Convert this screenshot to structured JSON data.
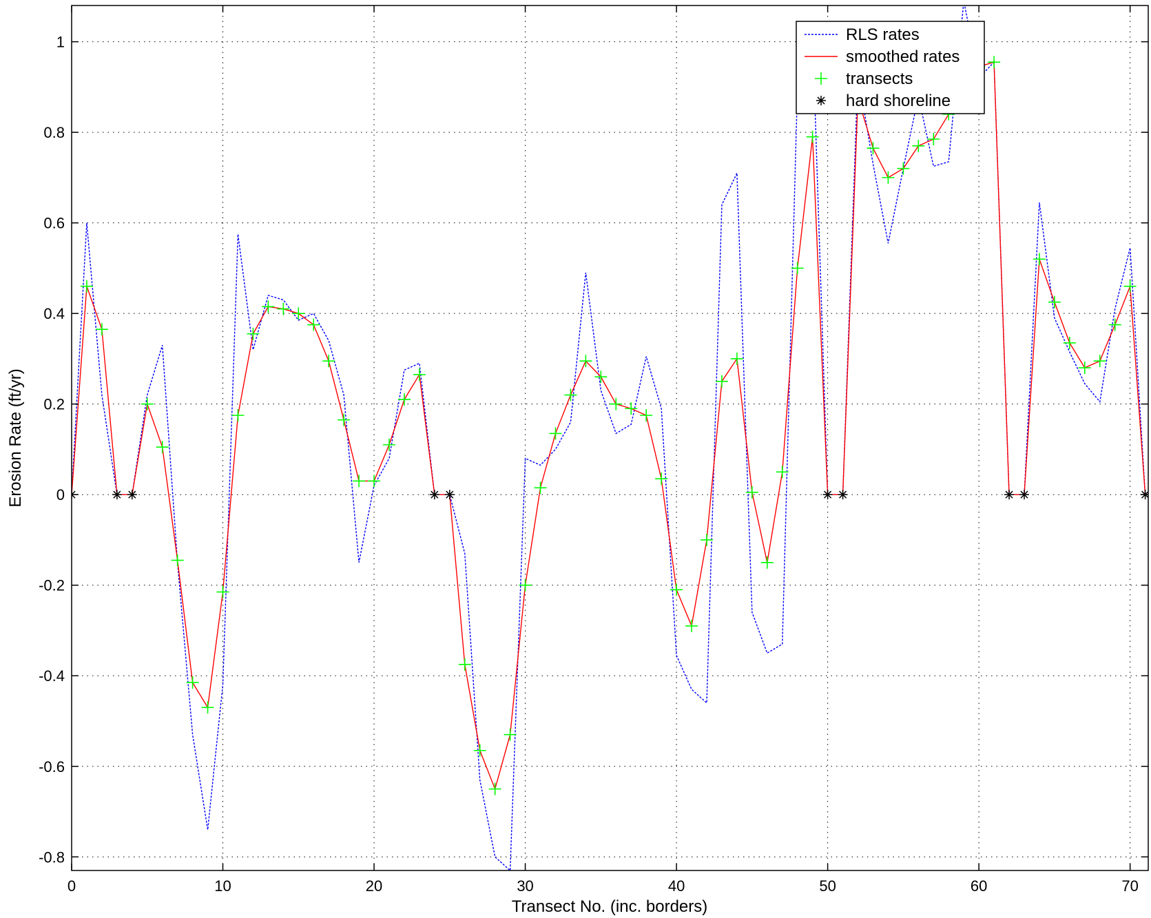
{
  "chart_data": {
    "type": "line",
    "xlabel": "Transect No. (inc. borders)",
    "ylabel": "Erosion Rate (ft/yr)",
    "xlim": [
      0,
      71.2
    ],
    "ylim": [
      -0.83,
      1.08
    ],
    "x_ticks": [
      0,
      10,
      20,
      30,
      40,
      50,
      60,
      70
    ],
    "y_ticks": [
      -0.8,
      -0.6,
      -0.4,
      -0.2,
      0,
      0.2,
      0.4,
      0.6,
      0.8,
      1
    ],
    "x_tick_labels": [
      "0",
      "10",
      "20",
      "30",
      "40",
      "50",
      "60",
      "70"
    ],
    "y_tick_labels": [
      "-0.8",
      "-0.6",
      "-0.4",
      "-0.2",
      "0",
      "0.2",
      "0.4",
      "0.6",
      "0.8",
      "1"
    ],
    "grid": true,
    "legend_position": "top-right",
    "colors": {
      "rls": "#0000ff",
      "smoothed": "#ff0000",
      "transects": "#00ff00",
      "hard": "#000000"
    },
    "series": [
      {
        "name": "RLS rates",
        "style": "dotted",
        "x": [
          0,
          1,
          2,
          3,
          4,
          5,
          6,
          7,
          8,
          9,
          10,
          11,
          12,
          13,
          14,
          15,
          16,
          17,
          18,
          19,
          20,
          21,
          22,
          23,
          24,
          25,
          26,
          27,
          28,
          29,
          30,
          31,
          32,
          33,
          34,
          35,
          36,
          37,
          38,
          39,
          40,
          41,
          42,
          43,
          44,
          45,
          46,
          47,
          48,
          49,
          50,
          51,
          52,
          53,
          54,
          55,
          56,
          57,
          58,
          59,
          60,
          61,
          62,
          63,
          64,
          65,
          66,
          67,
          68,
          69,
          70,
          71
        ],
        "y": [
          0,
          0.6,
          0.22,
          0,
          0,
          0.22,
          0.33,
          -0.15,
          -0.53,
          -0.74,
          -0.42,
          0.575,
          0.32,
          0.44,
          0.43,
          0.385,
          0.4,
          0.34,
          0.22,
          -0.15,
          0.02,
          0.08,
          0.275,
          0.29,
          0,
          0,
          -0.13,
          -0.63,
          -0.8,
          -0.83,
          0.08,
          0.065,
          0.1,
          0.16,
          0.49,
          0.23,
          0.135,
          0.155,
          0.305,
          0.19,
          -0.355,
          -0.43,
          -0.46,
          0.64,
          0.71,
          -0.26,
          -0.35,
          -0.33,
          0.9,
          1.02,
          0,
          0,
          0.93,
          0.73,
          0.555,
          0.72,
          0.88,
          0.725,
          0.735,
          1.09,
          0.92,
          0.955,
          0,
          0,
          0.645,
          0.39,
          0.315,
          0.245,
          0.205,
          0.41,
          0.545,
          0
        ]
      },
      {
        "name": "smoothed rates",
        "style": "solid",
        "x": [
          0,
          1,
          2,
          3,
          4,
          5,
          6,
          7,
          8,
          9,
          10,
          11,
          12,
          13,
          14,
          15,
          16,
          17,
          18,
          19,
          20,
          21,
          22,
          23,
          24,
          25,
          26,
          27,
          28,
          29,
          30,
          31,
          32,
          33,
          34,
          35,
          36,
          37,
          38,
          39,
          40,
          41,
          42,
          43,
          44,
          45,
          46,
          47,
          48,
          49,
          50,
          51,
          52,
          53,
          54,
          55,
          56,
          57,
          58,
          59,
          60,
          61,
          62,
          63,
          64,
          65,
          66,
          67,
          68,
          69,
          70,
          71
        ],
        "y": [
          0,
          0.46,
          0.365,
          0,
          0,
          0.2,
          0.105,
          -0.145,
          -0.415,
          -0.47,
          -0.215,
          0.175,
          0.355,
          0.415,
          0.41,
          0.4,
          0.375,
          0.295,
          0.165,
          0.03,
          0.03,
          0.11,
          0.21,
          0.265,
          0,
          0,
          -0.375,
          -0.565,
          -0.65,
          -0.53,
          -0.2,
          0.015,
          0.135,
          0.22,
          0.295,
          0.26,
          0.2,
          0.19,
          0.175,
          0.035,
          -0.21,
          -0.29,
          -0.1,
          0.25,
          0.3,
          0.005,
          -0.15,
          0.05,
          0.5,
          0.79,
          0,
          0,
          0.875,
          0.765,
          0.7,
          0.72,
          0.77,
          0.785,
          0.84,
          0.945,
          0.945,
          0.955,
          0,
          0,
          0.52,
          0.425,
          0.335,
          0.28,
          0.295,
          0.375,
          0.46,
          0
        ]
      },
      {
        "name": "transects",
        "style": "marker-plus",
        "x": [
          1,
          2,
          5,
          6,
          7,
          8,
          9,
          10,
          11,
          12,
          13,
          14,
          15,
          16,
          17,
          18,
          19,
          20,
          21,
          22,
          23,
          26,
          27,
          28,
          29,
          30,
          31,
          32,
          33,
          34,
          35,
          36,
          37,
          38,
          39,
          40,
          41,
          42,
          43,
          44,
          45,
          46,
          47,
          48,
          49,
          52,
          53,
          54,
          55,
          56,
          57,
          58,
          59,
          60,
          61,
          64,
          65,
          66,
          67,
          68,
          69,
          70
        ],
        "y": [
          0.46,
          0.365,
          0.2,
          0.105,
          -0.145,
          -0.415,
          -0.47,
          -0.215,
          0.175,
          0.355,
          0.415,
          0.41,
          0.4,
          0.375,
          0.295,
          0.165,
          0.03,
          0.03,
          0.11,
          0.21,
          0.265,
          -0.375,
          -0.565,
          -0.65,
          -0.53,
          -0.2,
          0.015,
          0.135,
          0.22,
          0.295,
          0.26,
          0.2,
          0.19,
          0.175,
          0.035,
          -0.21,
          -0.29,
          -0.1,
          0.25,
          0.3,
          0.005,
          -0.15,
          0.05,
          0.5,
          0.79,
          0.875,
          0.765,
          0.7,
          0.72,
          0.77,
          0.785,
          0.84,
          0.945,
          0.945,
          0.955,
          0.52,
          0.425,
          0.335,
          0.28,
          0.295,
          0.375,
          0.46
        ]
      },
      {
        "name": "hard shoreline",
        "style": "marker-star",
        "x": [
          0,
          3,
          4,
          24,
          25,
          50,
          51,
          62,
          63,
          71
        ],
        "y": [
          0,
          0,
          0,
          0,
          0,
          0,
          0,
          0,
          0,
          0
        ]
      }
    ]
  }
}
